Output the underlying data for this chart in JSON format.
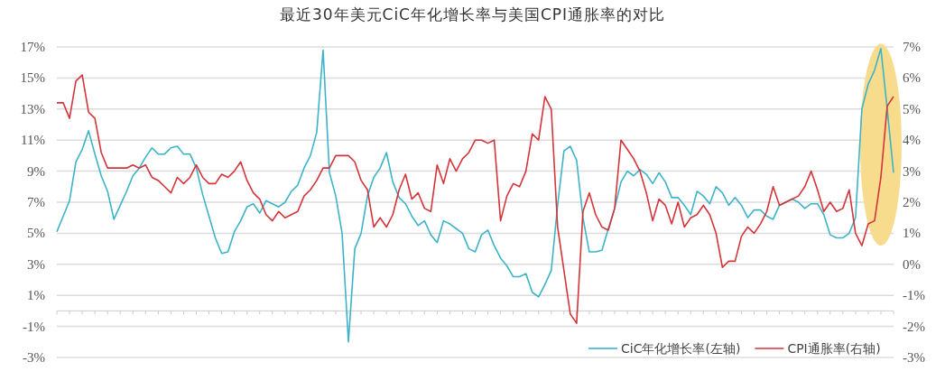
{
  "chart_data": {
    "type": "line",
    "title": "最近30年美元CiC年化增长率与美国CPI通胀率的对比",
    "categories": [
      null,
      null,
      null,
      null,
      null,
      null,
      null,
      null,
      null,
      null,
      null,
      null,
      null,
      null,
      null,
      null,
      null,
      null,
      null,
      null,
      null,
      null,
      null,
      null,
      null,
      null,
      null,
      null,
      null,
      null,
      null,
      null,
      null,
      null,
      null,
      null,
      null,
      null,
      null,
      null,
      null,
      null,
      null,
      null,
      null,
      null,
      null,
      null,
      null,
      null,
      null,
      null,
      null,
      null,
      null,
      null,
      null,
      null,
      null,
      null,
      null,
      null,
      null,
      null,
      null,
      null,
      null,
      null,
      null,
      null,
      null,
      null,
      null,
      null,
      null,
      null,
      null,
      null,
      null,
      null,
      null,
      null,
      null,
      null,
      null,
      null,
      null,
      null,
      null,
      null,
      null,
      null,
      null,
      null,
      null,
      null,
      null,
      null,
      null,
      null,
      null,
      null,
      null,
      null,
      null,
      null,
      null,
      null,
      null,
      null,
      null,
      null,
      null,
      null,
      null,
      null,
      null,
      null,
      null,
      null,
      null,
      null,
      null,
      null,
      null,
      null,
      null,
      null,
      null,
      null,
      null,
      null,
      null
    ],
    "series": [
      {
        "name": "CiC年化增长率(左轴)",
        "color": "#3cb4c8",
        "values": [
          5.1,
          6.1,
          7.1,
          9.6,
          10.4,
          11.6,
          10.1,
          8.7,
          7.7,
          5.9,
          6.8,
          7.7,
          8.7,
          9.2,
          9.9,
          10.5,
          10.1,
          10.1,
          10.5,
          10.6,
          10.1,
          10.1,
          9.2,
          7.5,
          6.1,
          4.7,
          3.7,
          3.8,
          5.1,
          5.8,
          6.7,
          6.9,
          6.3,
          7.1,
          6.9,
          6.7,
          7.0,
          7.7,
          8.1,
          9.2,
          10.0,
          11.5,
          16.8,
          8.9,
          7.4,
          5.0,
          -2.0,
          4.0,
          5.0,
          7.4,
          8.6,
          9.2,
          10.2,
          8.3,
          7.3,
          6.9,
          6.1,
          5.5,
          5.8,
          4.9,
          4.4,
          5.8,
          5.6,
          5.3,
          5.0,
          4.0,
          3.8,
          4.9,
          5.2,
          4.2,
          3.4,
          2.9,
          2.2,
          2.2,
          2.4,
          1.2,
          0.9,
          1.7,
          2.6,
          6.8,
          10.3,
          10.6,
          9.7,
          6.0,
          3.8,
          3.8,
          3.9,
          5.3,
          6.6,
          8.3,
          9.0,
          8.7,
          9.1,
          8.8,
          8.2,
          8.9,
          8.3,
          7.3,
          7.3,
          6.8,
          6.2,
          7.7,
          7.4,
          6.9,
          8.0,
          7.6,
          6.8,
          7.3,
          6.8,
          6.0,
          6.5,
          6.5,
          6.1,
          5.9,
          6.8,
          7.0,
          7.2,
          7.0,
          6.6,
          6.9,
          6.9,
          6.2,
          4.9,
          4.7,
          4.7,
          5.0,
          6.0,
          13.0,
          14.6,
          15.5,
          16.9,
          13.0,
          8.9
        ]
      },
      {
        "name": "CPI通胀率(右轴)",
        "color": "#d4343a",
        "axis": "y2",
        "values": [
          5.2,
          5.2,
          4.7,
          5.9,
          6.1,
          4.9,
          4.7,
          3.6,
          3.1,
          3.1,
          3.1,
          3.1,
          3.2,
          3.1,
          3.2,
          2.8,
          2.7,
          2.5,
          2.3,
          2.8,
          2.6,
          2.8,
          3.2,
          2.8,
          2.6,
          2.6,
          2.9,
          2.8,
          3.0,
          3.3,
          2.7,
          2.3,
          2.1,
          1.6,
          1.4,
          1.7,
          1.5,
          1.6,
          1.7,
          2.2,
          2.4,
          2.7,
          3.1,
          3.1,
          3.5,
          3.5,
          3.5,
          3.3,
          2.7,
          2.4,
          1.2,
          1.5,
          1.2,
          1.6,
          2.4,
          2.9,
          2.1,
          2.3,
          1.8,
          1.7,
          3.2,
          2.6,
          3.4,
          3.0,
          3.4,
          3.6,
          4.0,
          4.0,
          3.9,
          4.0,
          1.4,
          2.2,
          2.6,
          2.5,
          3.0,
          4.2,
          4.0,
          5.4,
          5.0,
          1.2,
          -0.2,
          -1.6,
          -1.9,
          1.7,
          2.3,
          1.6,
          1.2,
          1.1,
          1.8,
          4.0,
          3.7,
          3.4,
          3.0,
          2.3,
          1.4,
          2.1,
          1.9,
          1.3,
          2.0,
          1.2,
          1.5,
          1.6,
          1.9,
          1.6,
          1.0,
          -0.1,
          0.1,
          0.1,
          0.9,
          1.2,
          1.0,
          1.3,
          1.7,
          2.5,
          1.9,
          2.0,
          2.1,
          2.2,
          2.5,
          3.0,
          2.4,
          1.7,
          2.0,
          1.7,
          1.8,
          2.4,
          1.0,
          0.6,
          1.3,
          1.4,
          2.8,
          5.1,
          5.4
        ]
      }
    ],
    "ylim": [
      -3,
      17
    ],
    "yticks": [
      {
        "value": 17,
        "label": "17%"
      },
      {
        "value": 15,
        "label": "15%"
      },
      {
        "value": 13,
        "label": "13%"
      },
      {
        "value": 11,
        "label": "11%"
      },
      {
        "value": 9,
        "label": "9%"
      },
      {
        "value": 7,
        "label": "7%"
      },
      {
        "value": 5,
        "label": "5%"
      },
      {
        "value": 3,
        "label": "3%"
      },
      {
        "value": 1,
        "label": "1%"
      },
      {
        "value": -1,
        "label": "-1%"
      },
      {
        "value": -3,
        "label": "-3%"
      }
    ],
    "y2lim": [
      -3,
      7
    ],
    "y2ticks": [
      {
        "value": 7,
        "label": "7%"
      },
      {
        "value": 6,
        "label": "6%"
      },
      {
        "value": 5,
        "label": "5%"
      },
      {
        "value": 4,
        "label": "4%"
      },
      {
        "value": 3,
        "label": "3%"
      },
      {
        "value": 2,
        "label": "2%"
      },
      {
        "value": 1,
        "label": "1%"
      },
      {
        "value": 0,
        "label": "0%"
      },
      {
        "value": -1,
        "label": "-1%"
      },
      {
        "value": -2,
        "label": "-2%"
      },
      {
        "value": -3,
        "label": "-3%"
      }
    ],
    "grid": "y",
    "legend": "bottom right",
    "marker": "none",
    "line_style": "solid"
  }
}
